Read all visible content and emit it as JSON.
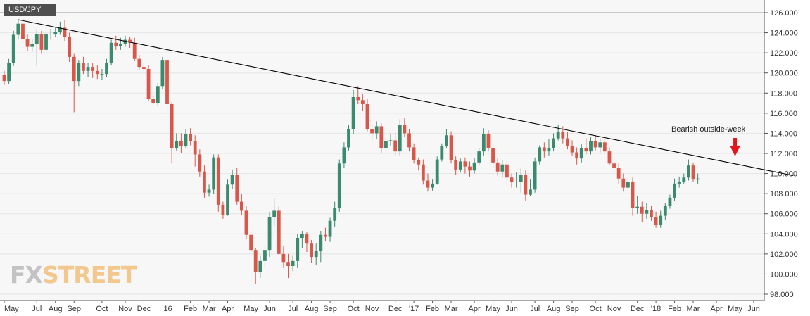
{
  "symbol": "USD/JPY",
  "watermark": {
    "part1": "FX",
    "part2": "STREET"
  },
  "colors": {
    "up": "#3a8a6e",
    "down": "#d9574a",
    "arrow": "#e8141b",
    "background": "#f7f7f7",
    "trendline": "#000000"
  },
  "chart_data": {
    "type": "candlestick",
    "title": "USD/JPY",
    "timeframe": "weekly",
    "ylim": [
      97.5,
      126.6
    ],
    "grid": true,
    "y_ticks": [
      "98.000",
      "100.000",
      "102.000",
      "104.000",
      "106.000",
      "108.000",
      "110.000",
      "112.000",
      "114.000",
      "116.000",
      "118.000",
      "120.000",
      "122.000",
      "124.000",
      "126.000"
    ],
    "x_ticks": [
      "May",
      "Jul",
      "Aug",
      "Sep",
      "Oct",
      "Nov",
      "Dec",
      "'16",
      "Feb",
      "Mar",
      "Apr",
      "May",
      "Jun",
      "Jul",
      "Aug",
      "Sep",
      "Oct",
      "Nov",
      "Dec",
      "'17",
      "Feb",
      "Mar",
      "Apr",
      "May",
      "Jun",
      "Jul",
      "Aug",
      "Sep",
      "Oct",
      "Nov",
      "Dec",
      "'18",
      "Feb",
      "Mar",
      "Apr",
      "May",
      "Jun"
    ],
    "x_tick_weeks": [
      0,
      7,
      11,
      15,
      21,
      26,
      30,
      35,
      40,
      44,
      48,
      53,
      57,
      62,
      66,
      70,
      75,
      79,
      84,
      88,
      92,
      96,
      101,
      105,
      109,
      114,
      118,
      122,
      127,
      131,
      136,
      140,
      144,
      148,
      153,
      157,
      161
    ],
    "candles": [
      [
        119.8,
        119.2,
        120.2,
        118.8
      ],
      [
        119.2,
        121.0,
        121.4,
        118.9
      ],
      [
        121.0,
        123.8,
        124.2,
        120.7
      ],
      [
        123.8,
        124.9,
        125.3,
        123.4
      ],
      [
        124.9,
        123.4,
        125.4,
        122.9
      ],
      [
        123.4,
        122.6,
        123.9,
        122.2
      ],
      [
        122.6,
        122.9,
        123.4,
        122.1
      ],
      [
        122.9,
        123.9,
        124.4,
        120.7
      ],
      [
        123.9,
        122.3,
        124.2,
        121.9
      ],
      [
        122.3,
        123.9,
        124.6,
        122.0
      ],
      [
        123.9,
        123.9,
        124.4,
        123.3
      ],
      [
        123.9,
        124.1,
        124.6,
        123.6
      ],
      [
        124.1,
        124.5,
        125.1,
        123.8
      ],
      [
        124.5,
        123.6,
        125.3,
        123.2
      ],
      [
        123.6,
        121.6,
        124.0,
        121.1
      ],
      [
        121.6,
        119.2,
        121.9,
        116.1
      ],
      [
        119.2,
        121.0,
        121.3,
        118.7
      ],
      [
        121.0,
        120.2,
        121.6,
        119.9
      ],
      [
        120.2,
        120.6,
        121.0,
        119.6
      ],
      [
        120.6,
        120.2,
        121.0,
        119.5
      ],
      [
        120.2,
        119.9,
        120.8,
        119.4
      ],
      [
        119.9,
        119.9,
        120.4,
        119.3
      ],
      [
        119.9,
        121.0,
        121.4,
        119.6
      ],
      [
        121.0,
        123.0,
        123.3,
        120.8
      ],
      [
        123.0,
        122.7,
        123.7,
        122.3
      ],
      [
        122.7,
        122.9,
        123.5,
        122.3
      ],
      [
        122.9,
        123.3,
        123.7,
        122.6
      ],
      [
        123.3,
        123.0,
        123.6,
        122.5
      ],
      [
        123.0,
        121.4,
        123.5,
        121.2
      ],
      [
        121.4,
        120.6,
        121.8,
        120.3
      ],
      [
        120.6,
        120.4,
        121.0,
        120.0
      ],
      [
        120.4,
        117.4,
        120.8,
        117.2
      ],
      [
        117.4,
        117.0,
        117.8,
        116.9
      ],
      [
        117.0,
        118.7,
        119.0,
        116.7
      ],
      [
        118.7,
        121.3,
        121.6,
        118.4
      ],
      [
        121.3,
        116.9,
        121.6,
        115.9
      ],
      [
        116.9,
        112.5,
        117.1,
        111.0
      ],
      [
        112.5,
        113.2,
        114.0,
        112.3
      ],
      [
        113.2,
        112.7,
        114.0,
        112.0
      ],
      [
        112.7,
        113.9,
        114.4,
        112.5
      ],
      [
        113.9,
        113.2,
        114.5,
        112.8
      ],
      [
        113.2,
        111.9,
        113.8,
        110.7
      ],
      [
        111.9,
        110.2,
        112.4,
        109.7
      ],
      [
        110.2,
        108.1,
        110.8,
        107.6
      ],
      [
        108.1,
        108.4,
        108.9,
        107.7
      ],
      [
        108.4,
        111.6,
        111.9,
        108.0
      ],
      [
        111.6,
        106.9,
        111.9,
        106.2
      ],
      [
        106.9,
        105.9,
        107.2,
        105.5
      ],
      [
        105.9,
        108.9,
        109.4,
        105.8
      ],
      [
        108.9,
        109.9,
        110.4,
        108.5
      ],
      [
        109.9,
        107.2,
        110.6,
        106.9
      ],
      [
        107.2,
        106.3,
        108.0,
        105.9
      ],
      [
        106.3,
        103.9,
        106.8,
        103.5
      ],
      [
        103.9,
        102.4,
        104.3,
        102.2
      ],
      [
        102.4,
        100.2,
        102.6,
        99.0
      ],
      [
        100.2,
        101.3,
        101.8,
        99.6
      ],
      [
        101.3,
        102.4,
        102.8,
        100.7
      ],
      [
        102.4,
        105.7,
        106.2,
        101.7
      ],
      [
        105.7,
        106.3,
        107.5,
        104.8
      ],
      [
        106.3,
        102.0,
        106.8,
        101.9
      ],
      [
        102.0,
        101.2,
        102.8,
        100.6
      ],
      [
        101.2,
        100.8,
        102.0,
        99.6
      ],
      [
        100.8,
        101.3,
        101.8,
        100.3
      ],
      [
        101.3,
        103.6,
        104.0,
        100.6
      ],
      [
        103.6,
        104.0,
        104.3,
        102.6
      ],
      [
        104.0,
        103.1,
        104.2,
        102.2
      ],
      [
        103.1,
        101.7,
        103.4,
        101.1
      ],
      [
        101.7,
        102.3,
        103.1,
        100.9
      ],
      [
        102.3,
        103.9,
        104.3,
        101.2
      ],
      [
        103.9,
        103.7,
        104.6,
        103.3
      ],
      [
        103.7,
        105.3,
        105.6,
        103.2
      ],
      [
        105.3,
        106.6,
        107.2,
        104.7
      ],
      [
        106.6,
        111.0,
        111.4,
        106.2
      ],
      [
        111.0,
        112.6,
        113.1,
        110.6
      ],
      [
        112.6,
        114.4,
        114.8,
        112.3
      ],
      [
        114.4,
        117.6,
        118.3,
        113.9
      ],
      [
        117.6,
        117.3,
        118.7,
        116.9
      ],
      [
        117.3,
        116.9,
        117.9,
        116.2
      ],
      [
        116.9,
        114.4,
        117.4,
        114.2
      ],
      [
        114.4,
        114.0,
        114.8,
        113.2
      ],
      [
        114.0,
        114.7,
        115.2,
        113.4
      ],
      [
        114.7,
        112.5,
        115.0,
        112.0
      ],
      [
        112.5,
        113.2,
        113.6,
        112.3
      ],
      [
        113.2,
        113.3,
        113.9,
        112.8
      ],
      [
        113.3,
        112.2,
        114.0,
        111.8
      ],
      [
        112.2,
        114.8,
        115.4,
        111.8
      ],
      [
        114.8,
        114.0,
        115.5,
        113.6
      ],
      [
        114.0,
        112.6,
        114.4,
        112.2
      ],
      [
        112.6,
        111.3,
        113.0,
        111.0
      ],
      [
        111.3,
        110.9,
        111.6,
        110.3
      ],
      [
        110.9,
        109.3,
        111.4,
        108.9
      ],
      [
        109.3,
        108.6,
        110.0,
        108.2
      ],
      [
        108.6,
        109.0,
        109.4,
        108.3
      ],
      [
        109.0,
        111.4,
        111.7,
        108.9
      ],
      [
        111.4,
        112.7,
        113.0,
        111.2
      ],
      [
        112.7,
        113.8,
        114.4,
        112.5
      ],
      [
        113.8,
        111.3,
        114.2,
        111.0
      ],
      [
        111.3,
        110.4,
        111.7,
        109.9
      ],
      [
        110.4,
        111.2,
        111.5,
        110.1
      ],
      [
        111.2,
        110.7,
        111.6,
        110.0
      ],
      [
        110.7,
        110.3,
        111.2,
        109.7
      ],
      [
        110.3,
        111.1,
        111.5,
        110.0
      ],
      [
        111.1,
        112.2,
        112.5,
        110.8
      ],
      [
        112.2,
        113.9,
        114.5,
        111.8
      ],
      [
        113.9,
        112.5,
        114.3,
        112.2
      ],
      [
        112.5,
        111.1,
        113.0,
        110.6
      ],
      [
        111.1,
        110.2,
        111.5,
        109.8
      ],
      [
        110.2,
        110.9,
        111.3,
        109.6
      ],
      [
        110.9,
        109.6,
        111.3,
        108.9
      ],
      [
        109.6,
        109.2,
        110.0,
        108.6
      ],
      [
        109.2,
        109.2,
        110.1,
        108.6
      ],
      [
        109.2,
        109.9,
        110.5,
        108.1
      ],
      [
        109.9,
        107.9,
        110.3,
        107.3
      ],
      [
        107.9,
        108.4,
        109.4,
        107.8
      ],
      [
        108.4,
        111.2,
        111.6,
        108.1
      ],
      [
        111.2,
        112.6,
        112.8,
        110.9
      ],
      [
        112.6,
        112.2,
        113.1,
        111.6
      ],
      [
        112.2,
        112.5,
        113.4,
        111.8
      ],
      [
        112.5,
        113.5,
        114.0,
        112.2
      ],
      [
        113.5,
        114.1,
        114.8,
        113.3
      ],
      [
        114.1,
        113.5,
        114.7,
        113.0
      ],
      [
        113.5,
        112.7,
        114.1,
        112.4
      ],
      [
        112.7,
        112.1,
        113.3,
        111.8
      ],
      [
        112.1,
        111.5,
        112.6,
        110.9
      ],
      [
        111.5,
        112.5,
        112.9,
        111.1
      ],
      [
        112.5,
        112.2,
        113.5,
        111.9
      ],
      [
        112.2,
        113.2,
        113.6,
        111.9
      ],
      [
        113.2,
        112.6,
        113.8,
        112.3
      ],
      [
        112.6,
        113.1,
        113.5,
        112.1
      ],
      [
        113.1,
        112.2,
        113.4,
        112.0
      ],
      [
        112.2,
        111.0,
        112.6,
        110.8
      ],
      [
        111.0,
        110.6,
        111.5,
        110.2
      ],
      [
        110.6,
        109.5,
        111.0,
        109.0
      ],
      [
        109.5,
        108.6,
        110.0,
        108.2
      ],
      [
        108.6,
        109.2,
        109.6,
        108.4
      ],
      [
        109.2,
        106.6,
        109.6,
        105.8
      ],
      [
        106.6,
        106.7,
        107.8,
        106.0
      ],
      [
        106.7,
        106.0,
        107.2,
        105.2
      ],
      [
        106.0,
        106.4,
        107.1,
        105.5
      ],
      [
        106.4,
        105.7,
        106.8,
        105.3
      ],
      [
        105.7,
        104.9,
        106.2,
        104.6
      ],
      [
        104.9,
        105.8,
        106.3,
        104.6
      ],
      [
        105.8,
        106.8,
        107.1,
        105.4
      ],
      [
        106.8,
        107.6,
        107.9,
        106.5
      ],
      [
        107.6,
        109.0,
        109.5,
        107.3
      ],
      [
        109.0,
        109.2,
        109.7,
        108.6
      ],
      [
        109.2,
        109.6,
        110.0,
        109.0
      ],
      [
        109.6,
        110.8,
        111.4,
        109.3
      ],
      [
        110.8,
        109.4,
        111.1,
        109.2
      ],
      [
        109.4,
        109.5,
        110.0,
        109.0
      ]
    ],
    "trendline": {
      "from": {
        "week": 3,
        "price": 125.3
      },
      "to": {
        "week": 169.5,
        "price": 109.8
      }
    },
    "annotations": [
      {
        "text": "Bearish outside-week",
        "week": 157,
        "style": "down-arrow"
      }
    ]
  }
}
